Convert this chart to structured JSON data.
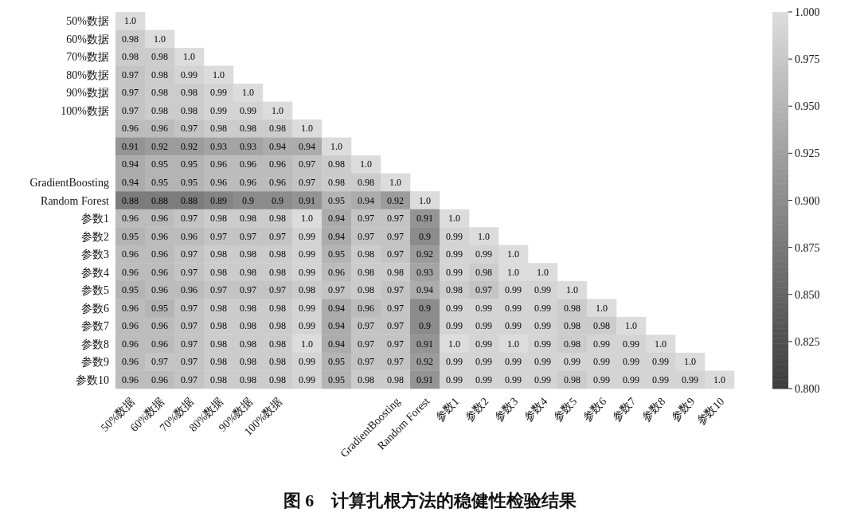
{
  "chart_data": {
    "type": "heatmap",
    "title": "图 6　计算扎根方法的稳健性检验结果",
    "categories": [
      "50%数据",
      "60%数据",
      "70%数据",
      "80%数据",
      "90%数据",
      "100%数据",
      null,
      null,
      null,
      "GradientBoosting",
      "Random Forest",
      "参数1",
      "参数2",
      "参数3",
      "参数4",
      "参数5",
      "参数6",
      "参数7",
      "参数8",
      "参数9",
      "参数10"
    ],
    "y_categories": [
      "50%数据",
      "60%数据",
      "70%数据",
      "80%数据",
      "90%数据",
      "100%数据",
      null,
      null,
      null,
      "GradientBoosting",
      "Random Forest",
      "参数1",
      "参数2",
      "参数3",
      "参数4",
      "参数5",
      "参数6",
      "参数7",
      "参数8",
      "参数9",
      "参数10"
    ],
    "cells": [
      [
        1.0,
        null,
        null,
        null,
        null,
        null,
        null,
        null,
        null,
        null,
        null,
        null,
        null,
        null,
        null,
        null,
        null,
        null,
        null,
        null,
        null
      ],
      [
        0.98,
        1.0,
        null,
        null,
        null,
        null,
        null,
        null,
        null,
        null,
        null,
        null,
        null,
        null,
        null,
        null,
        null,
        null,
        null,
        null,
        null
      ],
      [
        0.98,
        0.98,
        1.0,
        null,
        null,
        null,
        null,
        null,
        null,
        null,
        null,
        null,
        null,
        null,
        null,
        null,
        null,
        null,
        null,
        null,
        null
      ],
      [
        0.97,
        0.98,
        0.99,
        1.0,
        null,
        null,
        null,
        null,
        null,
        null,
        null,
        null,
        null,
        null,
        null,
        null,
        null,
        null,
        null,
        null,
        null
      ],
      [
        0.97,
        0.98,
        0.98,
        0.99,
        1.0,
        null,
        null,
        null,
        null,
        null,
        null,
        null,
        null,
        null,
        null,
        null,
        null,
        null,
        null,
        null,
        null
      ],
      [
        0.97,
        0.98,
        0.98,
        0.99,
        0.99,
        1.0,
        null,
        null,
        null,
        null,
        null,
        null,
        null,
        null,
        null,
        null,
        null,
        null,
        null,
        null,
        null
      ],
      [
        0.96,
        0.96,
        0.97,
        0.98,
        0.98,
        0.98,
        1.0,
        null,
        null,
        null,
        null,
        null,
        null,
        null,
        null,
        null,
        null,
        null,
        null,
        null,
        null
      ],
      [
        0.91,
        0.92,
        0.92,
        0.93,
        0.93,
        0.94,
        0.94,
        1.0,
        null,
        null,
        null,
        null,
        null,
        null,
        null,
        null,
        null,
        null,
        null,
        null,
        null
      ],
      [
        0.94,
        0.95,
        0.95,
        0.96,
        0.96,
        0.96,
        0.97,
        0.98,
        1.0,
        null,
        null,
        null,
        null,
        null,
        null,
        null,
        null,
        null,
        null,
        null,
        null
      ],
      [
        0.94,
        0.95,
        0.95,
        0.96,
        0.96,
        0.96,
        0.97,
        0.98,
        0.98,
        1.0,
        null,
        null,
        null,
        null,
        null,
        null,
        null,
        null,
        null,
        null,
        null
      ],
      [
        0.88,
        0.88,
        0.88,
        0.89,
        0.9,
        0.9,
        0.91,
        0.95,
        0.94,
        0.92,
        1.0,
        null,
        null,
        null,
        null,
        null,
        null,
        null,
        null,
        null,
        null
      ],
      [
        0.96,
        0.96,
        0.97,
        0.98,
        0.98,
        0.98,
        1.0,
        0.94,
        0.97,
        0.97,
        0.91,
        1.0,
        null,
        null,
        null,
        null,
        null,
        null,
        null,
        null,
        null
      ],
      [
        0.95,
        0.96,
        0.96,
        0.97,
        0.97,
        0.97,
        0.99,
        0.94,
        0.97,
        0.97,
        0.9,
        0.99,
        1.0,
        null,
        null,
        null,
        null,
        null,
        null,
        null,
        null
      ],
      [
        0.96,
        0.96,
        0.97,
        0.98,
        0.98,
        0.98,
        0.99,
        0.95,
        0.98,
        0.97,
        0.92,
        0.99,
        0.99,
        1.0,
        null,
        null,
        null,
        null,
        null,
        null,
        null
      ],
      [
        0.96,
        0.96,
        0.97,
        0.98,
        0.98,
        0.98,
        0.99,
        0.96,
        0.98,
        0.98,
        0.93,
        0.99,
        0.98,
        1.0,
        1.0,
        null,
        null,
        null,
        null,
        null,
        null
      ],
      [
        0.95,
        0.96,
        0.96,
        0.97,
        0.97,
        0.97,
        0.98,
        0.97,
        0.98,
        0.97,
        0.94,
        0.98,
        0.97,
        0.99,
        0.99,
        1.0,
        null,
        null,
        null,
        null,
        null
      ],
      [
        0.96,
        0.95,
        0.97,
        0.98,
        0.98,
        0.98,
        0.99,
        0.94,
        0.96,
        0.97,
        0.9,
        0.99,
        0.99,
        0.99,
        0.99,
        0.98,
        1.0,
        null,
        null,
        null,
        null
      ],
      [
        0.96,
        0.96,
        0.97,
        0.98,
        0.98,
        0.98,
        0.99,
        0.94,
        0.97,
        0.97,
        0.9,
        0.99,
        0.99,
        0.99,
        0.99,
        0.98,
        0.98,
        1.0,
        null,
        null,
        null
      ],
      [
        0.96,
        0.96,
        0.97,
        0.98,
        0.98,
        0.98,
        1.0,
        0.94,
        0.97,
        0.97,
        0.91,
        1.0,
        0.99,
        1.0,
        0.99,
        0.98,
        0.99,
        0.99,
        1.0,
        null,
        null
      ],
      [
        0.96,
        0.97,
        0.97,
        0.98,
        0.98,
        0.98,
        0.99,
        0.95,
        0.97,
        0.97,
        0.92,
        0.99,
        0.99,
        0.99,
        0.99,
        0.99,
        0.99,
        0.99,
        0.99,
        1.0,
        null
      ],
      [
        0.96,
        0.96,
        0.97,
        0.98,
        0.98,
        0.98,
        0.99,
        0.95,
        0.98,
        0.98,
        0.91,
        0.99,
        0.99,
        0.99,
        0.99,
        0.98,
        0.99,
        0.99,
        0.99,
        0.99,
        1.0
      ]
    ],
    "cell_labels": [
      [
        "1.0",
        null,
        null,
        null,
        null,
        null,
        null,
        null,
        null,
        null,
        null,
        null,
        null,
        null,
        null,
        null,
        null,
        null,
        null,
        null,
        null
      ],
      [
        "0.98",
        "1.0",
        null,
        null,
        null,
        null,
        null,
        null,
        null,
        null,
        null,
        null,
        null,
        null,
        null,
        null,
        null,
        null,
        null,
        null,
        null
      ],
      [
        "0.98",
        "0.98",
        "1.0",
        null,
        null,
        null,
        null,
        null,
        null,
        null,
        null,
        null,
        null,
        null,
        null,
        null,
        null,
        null,
        null,
        null,
        null
      ],
      [
        "0.97",
        "0.98",
        "0.99",
        "1.0",
        null,
        null,
        null,
        null,
        null,
        null,
        null,
        null,
        null,
        null,
        null,
        null,
        null,
        null,
        null,
        null,
        null
      ],
      [
        "0.97",
        "0.98",
        "0.98",
        "0.99",
        "1.0",
        null,
        null,
        null,
        null,
        null,
        null,
        null,
        null,
        null,
        null,
        null,
        null,
        null,
        null,
        null,
        null
      ],
      [
        "0.97",
        "0.98",
        "0.98",
        "0.99",
        "0.99",
        "1.0",
        null,
        null,
        null,
        null,
        null,
        null,
        null,
        null,
        null,
        null,
        null,
        null,
        null,
        null,
        null
      ],
      [
        "0.96",
        "0.96",
        "0.97",
        "0.98",
        "0.98",
        "0.98",
        "1.0",
        null,
        null,
        null,
        null,
        null,
        null,
        null,
        null,
        null,
        null,
        null,
        null,
        null,
        null
      ],
      [
        "0.91",
        "0.92",
        "0.92",
        "0.93",
        "0.93",
        "0.94",
        "0.94",
        "1.0",
        null,
        null,
        null,
        null,
        null,
        null,
        null,
        null,
        null,
        null,
        null,
        null,
        null
      ],
      [
        "0.94",
        "0.95",
        "0.95",
        "0.96",
        "0.96",
        "0.96",
        "0.97",
        "0.98",
        "1.0",
        null,
        null,
        null,
        null,
        null,
        null,
        null,
        null,
        null,
        null,
        null,
        null
      ],
      [
        "0.94",
        "0.95",
        "0.95",
        "0.96",
        "0.96",
        "0.96",
        "0.97",
        "0.98",
        "0.98",
        "1.0",
        null,
        null,
        null,
        null,
        null,
        null,
        null,
        null,
        null,
        null,
        null
      ],
      [
        "0.88",
        "0.88",
        "0.88",
        "0.89",
        "0.9",
        "0.9",
        "0.91",
        "0.95",
        "0.94",
        "0.92",
        "1.0",
        null,
        null,
        null,
        null,
        null,
        null,
        null,
        null,
        null,
        null
      ],
      [
        "0.96",
        "0.96",
        "0.97",
        "0.98",
        "0.98",
        "0.98",
        "1.0",
        "0.94",
        "0.97",
        "0.97",
        "0.91",
        "1.0",
        null,
        null,
        null,
        null,
        null,
        null,
        null,
        null,
        null
      ],
      [
        "0.95",
        "0.96",
        "0.96",
        "0.97",
        "0.97",
        "0.97",
        "0.99",
        "0.94",
        "0.97",
        "0.97",
        "0.9",
        "0.99",
        "1.0",
        null,
        null,
        null,
        null,
        null,
        null,
        null,
        null
      ],
      [
        "0.96",
        "0.96",
        "0.97",
        "0.98",
        "0.98",
        "0.98",
        "0.99",
        "0.95",
        "0.98",
        "0.97",
        "0.92",
        "0.99",
        "0.99",
        "1.0",
        null,
        null,
        null,
        null,
        null,
        null,
        null
      ],
      [
        "0.96",
        "0.96",
        "0.97",
        "0.98",
        "0.98",
        "0.98",
        "0.99",
        "0.96",
        "0.98",
        "0.98",
        "0.93",
        "0.99",
        "0.98",
        "1.0",
        "1.0",
        null,
        null,
        null,
        null,
        null,
        null
      ],
      [
        "0.95",
        "0.96",
        "0.96",
        "0.97",
        "0.97",
        "0.97",
        "0.98",
        "0.97",
        "0.98",
        "0.97",
        "0.94",
        "0.98",
        "0.97",
        "0.99",
        "0.99",
        "1.0",
        null,
        null,
        null,
        null,
        null
      ],
      [
        "0.96",
        "0.95",
        "0.97",
        "0.98",
        "0.98",
        "0.98",
        "0.99",
        "0.94",
        "0.96",
        "0.97",
        "0.9",
        "0.99",
        "0.99",
        "0.99",
        "0.99",
        "0.98",
        "1.0",
        null,
        null,
        null,
        null
      ],
      [
        "0.96",
        "0.96",
        "0.97",
        "0.98",
        "0.98",
        "0.98",
        "0.99",
        "0.94",
        "0.97",
        "0.97",
        "0.9",
        "0.99",
        "0.99",
        "0.99",
        "0.99",
        "0.98",
        "0.98",
        "1.0",
        null,
        null,
        null
      ],
      [
        "0.96",
        "0.96",
        "0.97",
        "0.98",
        "0.98",
        "0.98",
        "1.0",
        "0.94",
        "0.97",
        "0.97",
        "0.91",
        "1.0",
        "0.99",
        "1.0",
        "0.99",
        "0.98",
        "0.99",
        "0.99",
        "1.0",
        null,
        null
      ],
      [
        "0.96",
        "0.97",
        "0.97",
        "0.98",
        "0.98",
        "0.98",
        "0.99",
        "0.95",
        "0.97",
        "0.97",
        "0.92",
        "0.99",
        "0.99",
        "0.99",
        "0.99",
        "0.99",
        "0.99",
        "0.99",
        "0.99",
        "1.0",
        null
      ],
      [
        "0.96",
        "0.96",
        "0.97",
        "0.98",
        "0.98",
        "0.98",
        "0.99",
        "0.95",
        "0.98",
        "0.98",
        "0.91",
        "0.99",
        "0.99",
        "0.99",
        "0.99",
        "0.98",
        "0.99",
        "0.99",
        "0.99",
        "0.99",
        "1.0"
      ]
    ],
    "clim": [
      0.8,
      1.0
    ],
    "cticks": [
      {
        "value": 0.8,
        "label": "0.800"
      },
      {
        "value": 0.825,
        "label": "0.825"
      },
      {
        "value": 0.85,
        "label": "0.850"
      },
      {
        "value": 0.875,
        "label": "0.875"
      },
      {
        "value": 0.9,
        "label": "0.900"
      },
      {
        "value": 0.925,
        "label": "0.925"
      },
      {
        "value": 0.95,
        "label": "0.950"
      },
      {
        "value": 0.975,
        "label": "0.975"
      },
      {
        "value": 1.0,
        "label": "1.000"
      }
    ]
  }
}
